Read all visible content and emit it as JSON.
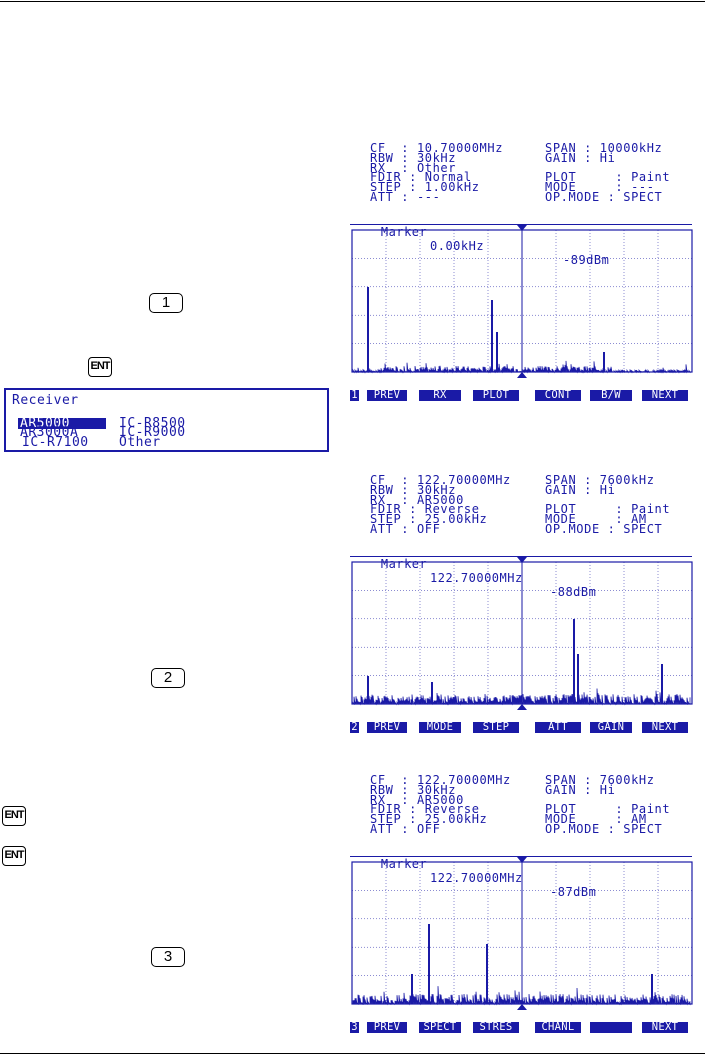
{
  "keys": {
    "k1": "1",
    "k2": "2",
    "k3": "3",
    "ent": "ENT"
  },
  "receiver_box": {
    "title": "Receiver",
    "options": [
      "AR5000",
      "IC-R8500",
      "AR3000A",
      "IC-R9000",
      "IC-R7100",
      "Other"
    ],
    "selected": "AR5000"
  },
  "screens": [
    {
      "info": {
        "left": "CF  : 10.70000MHz\nRBW : 30kHz\nRX  : Other\nFDIR : Normal\nSTEP : 1.00kHz\nATT : ---",
        "right": "SPAN : 10000kHz\nGAIN : Hi\n\nPLOT     : Paint\nMODE     : ---\nOP.MODE : SPECT"
      },
      "marker": {
        "label": "Marker",
        "freq": "0.00kHz",
        "level": "-89dBm"
      },
      "softkeys": [
        "1",
        "PREV",
        "RX",
        "PLOT",
        "CONT",
        "B/W",
        "NEXT"
      ],
      "trace_color": "#1a1aa6"
    },
    {
      "info": {
        "left": "CF  : 122.70000MHz\nRBW : 30kHz\nRX  : AR5000\nFDIR : Reverse\nSTEP : 25.00kHz\nATT : OFF",
        "right": "SPAN : 7600kHz\nGAIN : Hi\n\nPLOT     : Paint\nMODE     : AM\nOP.MODE : SPECT"
      },
      "marker": {
        "label": "Marker",
        "freq": "122.70000MHz",
        "level": "-88dBm"
      },
      "softkeys": [
        "2",
        "PREV",
        "MODE",
        "STEP",
        "ATT",
        "GAIN",
        "NEXT"
      ],
      "trace_color": "#1a1aa6"
    },
    {
      "info": {
        "left": "CF  : 122.70000MHz\nRBW : 30kHz\nRX  : AR5000\nFDIR : Reverse\nSTEP : 25.00kHz\nATT : OFF",
        "right": "SPAN : 7600kHz\nGAIN : Hi\n\nPLOT     : Paint\nMODE     : AM\nOP.MODE : SPECT"
      },
      "marker": {
        "label": "Marker",
        "freq": "122.70000MHz",
        "level": "-87dBm"
      },
      "softkeys": [
        "3",
        "PREV",
        "SPECT",
        "STRES",
        "CHANL",
        "",
        "NEXT"
      ],
      "trace_color": "#1a1aa6"
    }
  ]
}
